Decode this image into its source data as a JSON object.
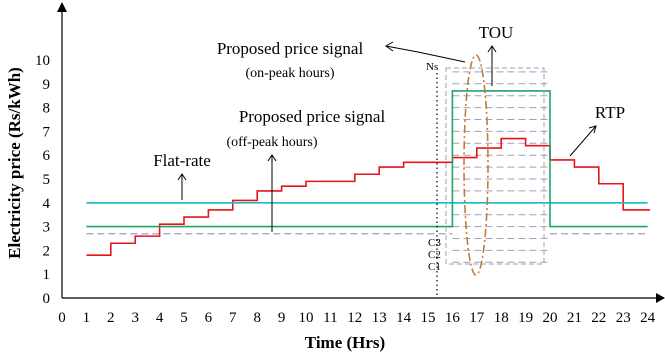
{
  "colors": {
    "rtp": "#e8141c",
    "flat_rate": "#1bb8c4",
    "tou": "#1fa560",
    "proposed": "#a0a0b8",
    "ellipse": "#c77a3a",
    "axis": "#000000"
  },
  "chart_data": {
    "type": "line",
    "xlabel": "Time (Hrs)",
    "ylabel": "Electricity price (Rs/kWh)",
    "xlim": [
      0,
      24
    ],
    "ylim": [
      0,
      10
    ],
    "x_ticks": [
      "0",
      "1",
      "2",
      "3",
      "4",
      "5",
      "6",
      "7",
      "8",
      "9",
      "10",
      "11",
      "12",
      "13",
      "14",
      "15",
      "16",
      "17",
      "18",
      "19",
      "20",
      "21",
      "22",
      "23",
      "24"
    ],
    "y_ticks": [
      "0",
      "1",
      "2",
      "3",
      "4",
      "5",
      "6",
      "7",
      "8",
      "9",
      "10"
    ],
    "grid": false,
    "series": [
      {
        "name": "RTP",
        "style": "step",
        "x": [
          1,
          2,
          3,
          4,
          5,
          6,
          7,
          8,
          9,
          10,
          11,
          12,
          13,
          14,
          15,
          16,
          17,
          18,
          19,
          20,
          21,
          22,
          23,
          24
        ],
        "y": [
          1.8,
          2.3,
          2.6,
          3.1,
          3.4,
          3.7,
          4.1,
          4.5,
          4.7,
          4.9,
          4.9,
          5.2,
          5.5,
          5.7,
          5.7,
          5.9,
          6.3,
          6.7,
          6.4,
          5.8,
          5.5,
          4.8,
          3.7,
          3.7
        ]
      },
      {
        "name": "Flat-rate",
        "style": "flat",
        "x": [
          1,
          24
        ],
        "y": [
          4.0,
          4.0
        ]
      },
      {
        "name": "TOU",
        "style": "step",
        "x": [
          1,
          16,
          20,
          24
        ],
        "y": [
          3.0,
          8.7,
          3.0,
          3.0
        ]
      }
    ],
    "proposed_signal": {
      "off_peak_level": 2.7,
      "on_peak_start": 16,
      "on_peak_end": 20,
      "on_peak_levels": [
        1.5,
        2.0,
        2.5,
        3.0,
        3.5,
        4.0,
        4.5,
        5.0,
        5.5,
        6.0,
        6.5,
        7.0,
        7.5,
        8.0,
        8.5,
        9.0,
        9.5
      ],
      "level_labels": [
        "C1",
        "C2",
        "C3",
        "Ns"
      ]
    },
    "annotations": [
      {
        "text": "Proposed price signal",
        "sub": "(on-peak hours)"
      },
      {
        "text": "Proposed price signal",
        "sub": "(off-peak hours)"
      },
      {
        "text": "Flat-rate"
      },
      {
        "text": "TOU"
      },
      {
        "text": "RTP"
      }
    ]
  }
}
